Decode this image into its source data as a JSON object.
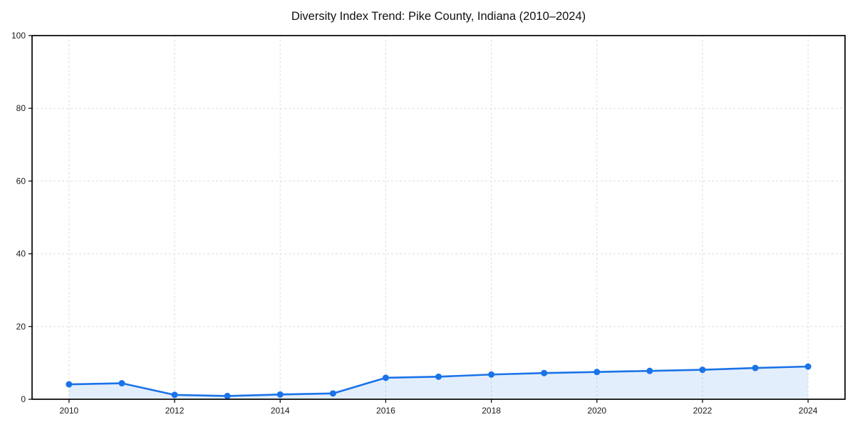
{
  "chart_data": {
    "type": "line",
    "title": "Diversity Index Trend: Pike County, Indiana (2010–2024)",
    "xlabel": "",
    "ylabel": "",
    "x": [
      2010,
      2011,
      2012,
      2013,
      2014,
      2015,
      2016,
      2017,
      2018,
      2019,
      2020,
      2021,
      2022,
      2023,
      2024
    ],
    "series": [
      {
        "name": "Diversity Index",
        "values": [
          4.1,
          4.4,
          1.2,
          0.9,
          1.3,
          1.6,
          5.9,
          6.2,
          6.8,
          7.2,
          7.5,
          7.8,
          8.1,
          8.6,
          9.0
        ]
      }
    ],
    "xticks": [
      2010,
      2012,
      2014,
      2016,
      2018,
      2020,
      2022,
      2024
    ],
    "yticks": [
      0,
      20,
      40,
      60,
      80,
      100
    ],
    "xlim": [
      2009.3,
      2024.7
    ],
    "ylim": [
      0,
      100
    ],
    "grid": true,
    "grid_style": "dashed",
    "legend_position": "none",
    "marker": "circle",
    "area_fill": true,
    "colors": {
      "line": "#1a73e8",
      "marker": "#1a73e8",
      "fill": "#1a73e8",
      "fill_opacity": 0.12,
      "grid": "#dddddd",
      "spine": "#000000",
      "tick_text": "#1a1a1a",
      "background": "#ffffff"
    }
  }
}
